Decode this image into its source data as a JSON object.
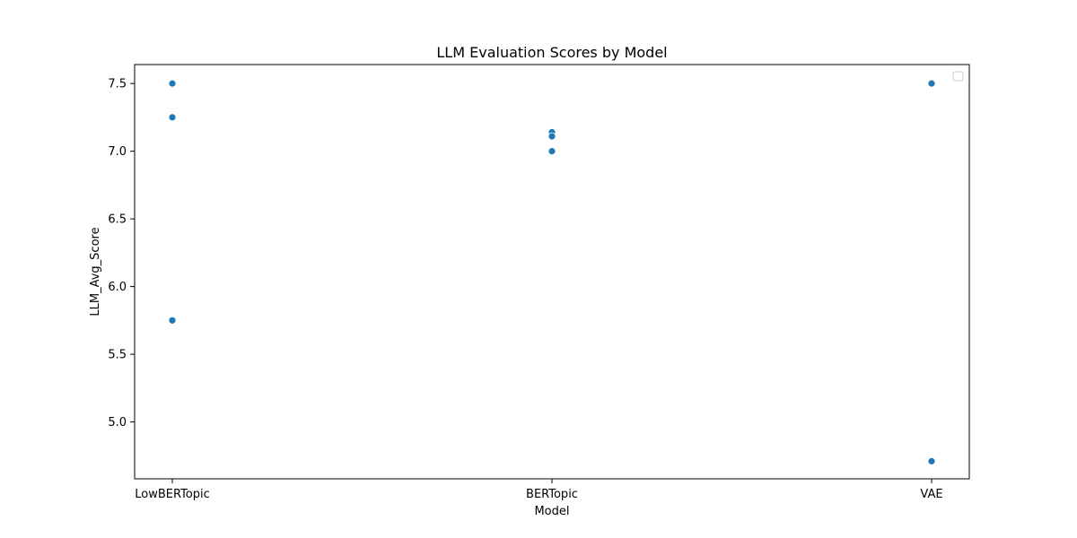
{
  "chart_data": {
    "type": "scatter",
    "title": "LLM Evaluation Scores by Model",
    "xlabel": "Model",
    "ylabel": "LLM_Avg_Score",
    "categories": [
      "LowBERTopic",
      "BERTopic",
      "VAE"
    ],
    "points": [
      {
        "x": "LowBERTopic",
        "y": 7.5
      },
      {
        "x": "LowBERTopic",
        "y": 7.25
      },
      {
        "x": "LowBERTopic",
        "y": 5.75
      },
      {
        "x": "BERTopic",
        "y": 7.14
      },
      {
        "x": "BERTopic",
        "y": 7.11
      },
      {
        "x": "BERTopic",
        "y": 7.0
      },
      {
        "x": "VAE",
        "y": 7.5
      },
      {
        "x": "VAE",
        "y": 4.71
      }
    ],
    "yticks": [
      5.0,
      5.5,
      6.0,
      6.5,
      7.0,
      7.5
    ],
    "ylim": [
      4.58,
      7.64
    ],
    "grid": false,
    "legend": "upper-right",
    "colors": {
      "point": "#1f77b4",
      "axis": "#000000"
    }
  }
}
